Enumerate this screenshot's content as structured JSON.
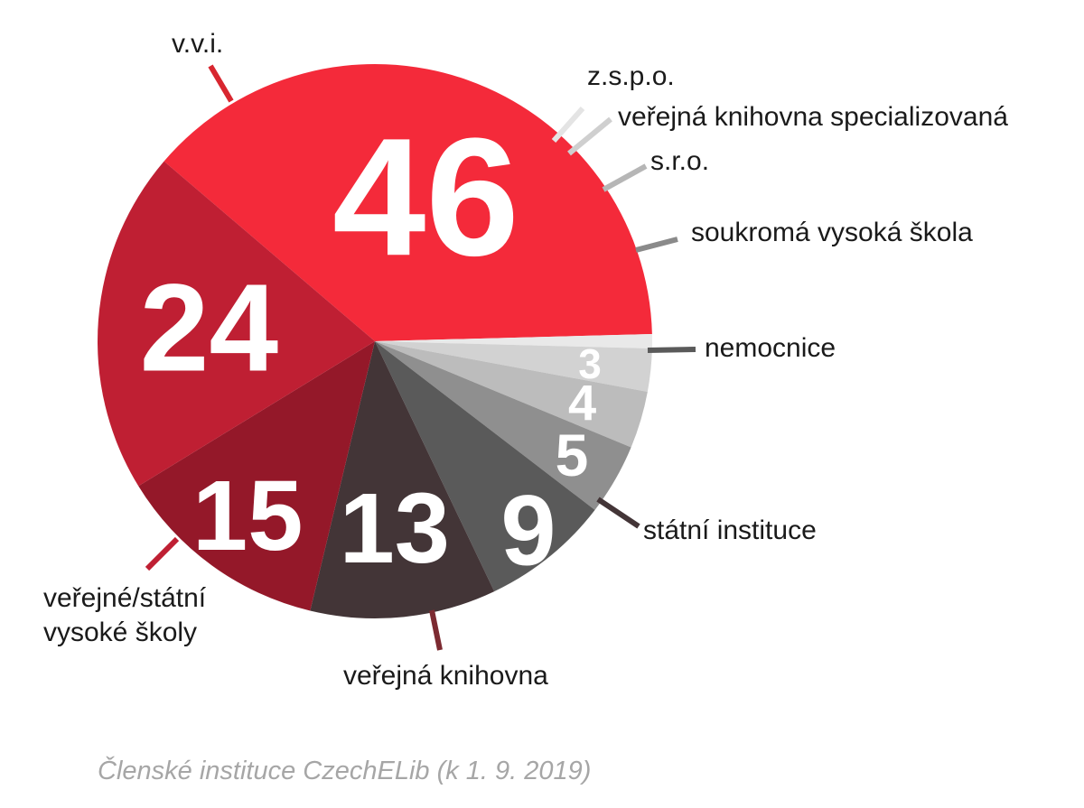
{
  "caption": "Členské instituce CzechELib (k 1. 9. 2019)",
  "chart_data": {
    "type": "pie",
    "title": "",
    "slices": [
      {
        "label": "v.v.i.",
        "value": 46,
        "display": "46",
        "color": "#f42a3a"
      },
      {
        "label": "z.s.p.o.",
        "value": 1,
        "display": "1",
        "color": "#e9e9e9"
      },
      {
        "label": "veřejná knihovna specializovaná",
        "value": 3,
        "display": "3",
        "color": "#d2d2d2"
      },
      {
        "label": "s.r.o.",
        "value": 4,
        "display": "4",
        "color": "#bcbcbc"
      },
      {
        "label": "soukromá vysoká škola",
        "value": 5,
        "display": "5",
        "color": "#8f8f8f"
      },
      {
        "label": "nemocnice",
        "value": 9,
        "display": "9",
        "color": "#5a5a5a"
      },
      {
        "label": "státní instituce",
        "value": 13,
        "display": "13",
        "color": "#433537"
      },
      {
        "label": "veřejná knihovna",
        "value": 15,
        "display": "15",
        "color": "#941829"
      },
      {
        "label": "veřejné/státní vysoké školy",
        "value": 24,
        "display": "24",
        "color": "#bf1f33"
      }
    ]
  }
}
